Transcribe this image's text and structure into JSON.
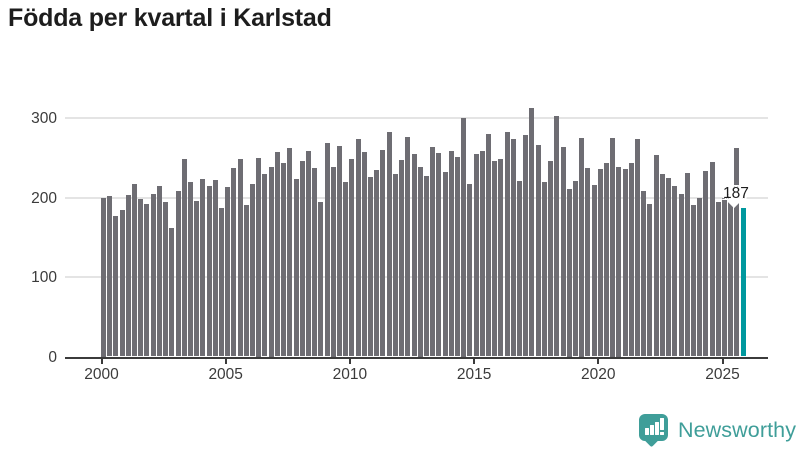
{
  "title": "Födda per kvartal i Karlstad",
  "branding": {
    "name": "Newsworthy"
  },
  "colors": {
    "bar": "#6e6d73",
    "highlight": "#00989e",
    "brand": "#3f9e99",
    "axis_text": "#3b3b3b",
    "grid": "#e4e4e4",
    "title_text": "#1d1d1d",
    "background": "#ffffff"
  },
  "chart_data": {
    "type": "bar",
    "title": "Födda per kvartal i Karlstad",
    "xlabel": "",
    "ylabel": "",
    "ylim": [
      0,
      320
    ],
    "y_ticks": [
      0,
      100,
      200,
      300
    ],
    "x_ticks": [
      "2000",
      "2005",
      "2010",
      "2015",
      "2020",
      "2025"
    ],
    "grid": "horizontal",
    "legend": "none",
    "highlight_index": 103,
    "highlight_value_label": "187",
    "categories": [
      "2000 Q1",
      "2000 Q2",
      "2000 Q3",
      "2000 Q4",
      "2001 Q1",
      "2001 Q2",
      "2001 Q3",
      "2001 Q4",
      "2002 Q1",
      "2002 Q2",
      "2002 Q3",
      "2002 Q4",
      "2003 Q1",
      "2003 Q2",
      "2003 Q3",
      "2003 Q4",
      "2004 Q1",
      "2004 Q2",
      "2004 Q3",
      "2004 Q4",
      "2005 Q1",
      "2005 Q2",
      "2005 Q3",
      "2005 Q4",
      "2006 Q1",
      "2006 Q2",
      "2006 Q3",
      "2006 Q4",
      "2007 Q1",
      "2007 Q2",
      "2007 Q3",
      "2007 Q4",
      "2008 Q1",
      "2008 Q2",
      "2008 Q3",
      "2008 Q4",
      "2009 Q1",
      "2009 Q2",
      "2009 Q3",
      "2009 Q4",
      "2010 Q1",
      "2010 Q2",
      "2010 Q3",
      "2010 Q4",
      "2011 Q1",
      "2011 Q2",
      "2011 Q3",
      "2011 Q4",
      "2012 Q1",
      "2012 Q2",
      "2012 Q3",
      "2012 Q4",
      "2013 Q1",
      "2013 Q2",
      "2013 Q3",
      "2013 Q4",
      "2014 Q1",
      "2014 Q2",
      "2014 Q3",
      "2014 Q4",
      "2015 Q1",
      "2015 Q2",
      "2015 Q3",
      "2015 Q4",
      "2016 Q1",
      "2016 Q2",
      "2016 Q3",
      "2016 Q4",
      "2017 Q1",
      "2017 Q2",
      "2017 Q3",
      "2017 Q4",
      "2018 Q1",
      "2018 Q2",
      "2018 Q3",
      "2018 Q4",
      "2019 Q1",
      "2019 Q2",
      "2019 Q3",
      "2019 Q4",
      "2020 Q1",
      "2020 Q2",
      "2020 Q3",
      "2020 Q4",
      "2021 Q1",
      "2021 Q2",
      "2021 Q3",
      "2021 Q4",
      "2022 Q1",
      "2022 Q2",
      "2022 Q3",
      "2022 Q4",
      "2023 Q1",
      "2023 Q2",
      "2023 Q3",
      "2023 Q4",
      "2024 Q1",
      "2024 Q2",
      "2024 Q3",
      "2024 Q4",
      "2025 Q1",
      "2025 Q2",
      "2025 Q3",
      "2025 Q4"
    ],
    "values": [
      200,
      202,
      177,
      184,
      203,
      217,
      198,
      192,
      205,
      215,
      194,
      162,
      208,
      248,
      220,
      195,
      223,
      214,
      222,
      187,
      213,
      237,
      249,
      190,
      217,
      250,
      230,
      239,
      257,
      243,
      262,
      223,
      246,
      259,
      237,
      194,
      269,
      239,
      265,
      219,
      249,
      273,
      257,
      226,
      234,
      260,
      283,
      230,
      247,
      276,
      255,
      239,
      227,
      263,
      256,
      232,
      258,
      251,
      300,
      217,
      255,
      258,
      280,
      246,
      248,
      282,
      274,
      221,
      279,
      313,
      266,
      220,
      246,
      302,
      263,
      211,
      221,
      275,
      237,
      216,
      236,
      244,
      275,
      239,
      236,
      244,
      274,
      208,
      192,
      254,
      229,
      224,
      214,
      204,
      231,
      190,
      199,
      233,
      245,
      194,
      201,
      204,
      262,
      187
    ]
  }
}
